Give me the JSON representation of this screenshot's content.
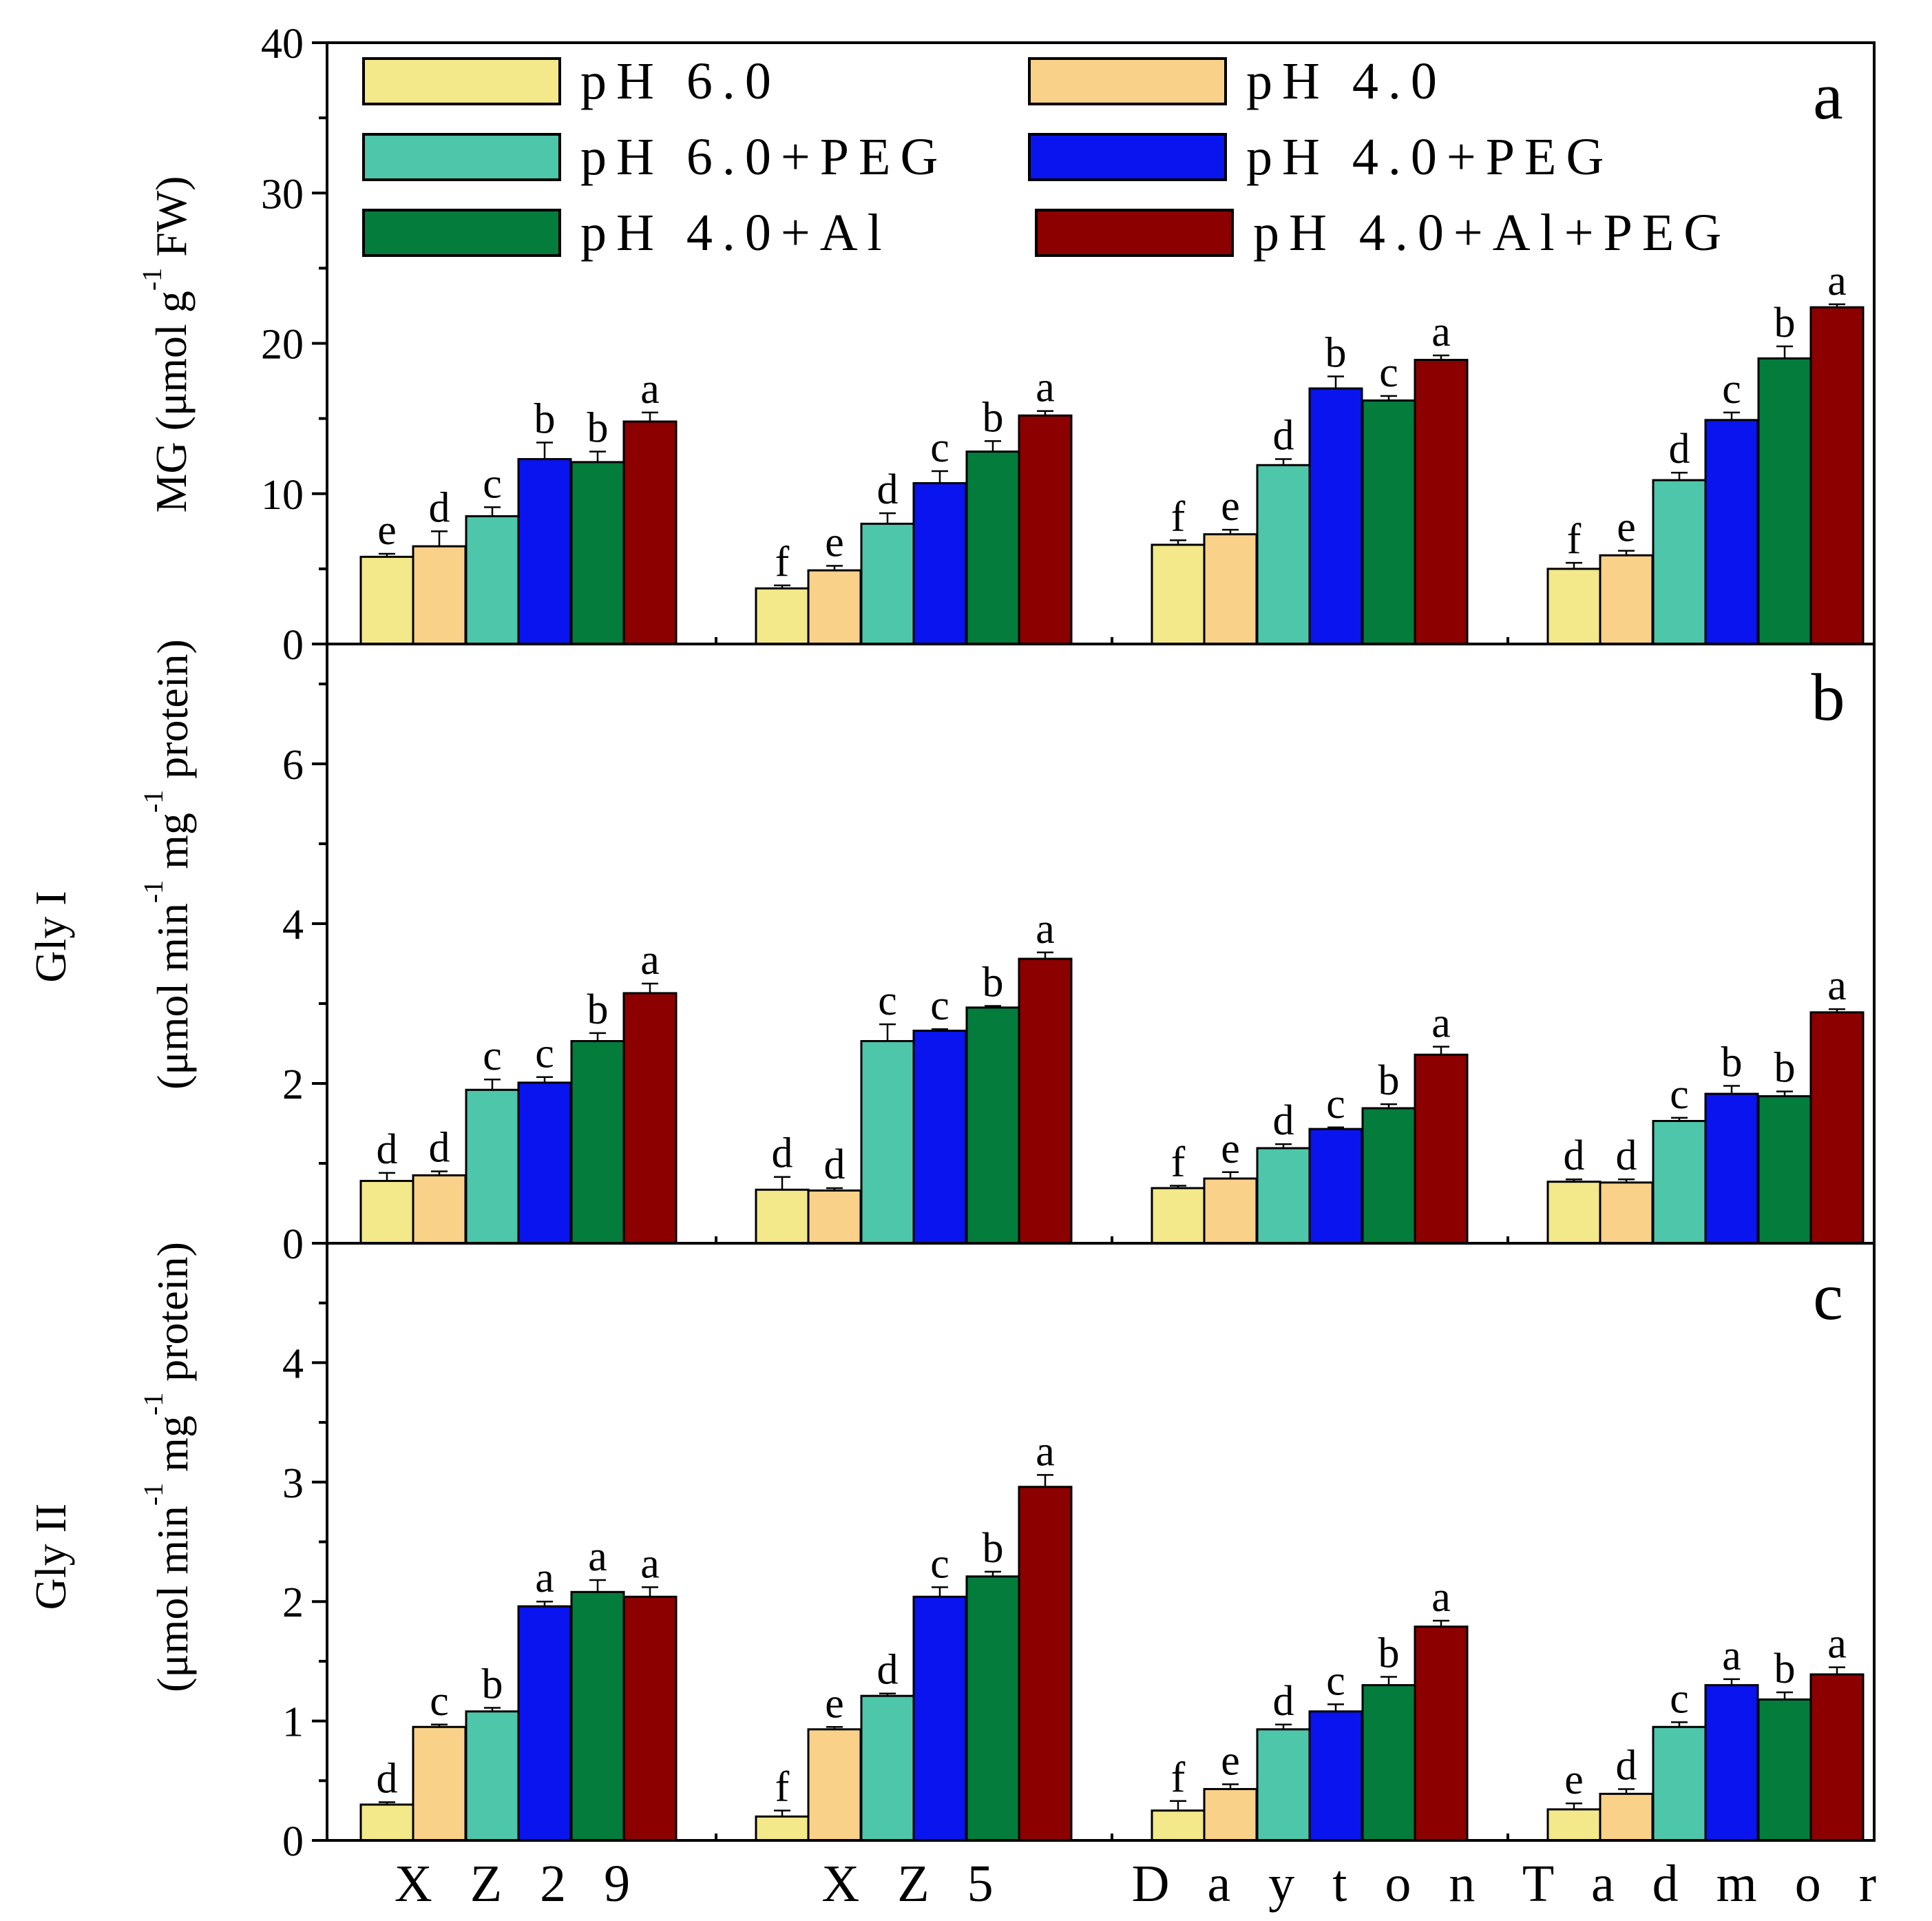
{
  "chart_data": {
    "type": "bar",
    "categories": [
      "XZ29",
      "XZ5",
      "Dayton",
      "Tadmor"
    ],
    "legend": [
      {
        "name": "pH 6.0",
        "color": "#f3e88a"
      },
      {
        "name": "pH 4.0",
        "color": "#f9d188"
      },
      {
        "name": "pH 6.0+PEG",
        "color": "#4ec6a9"
      },
      {
        "name": "pH 4.0+PEG",
        "color": "#0a14ee"
      },
      {
        "name": "pH 4.0+Al",
        "color": "#037c3c"
      },
      {
        "name": "pH 4.0+Al+PEG",
        "color": "#8c0000"
      }
    ],
    "panels": [
      {
        "panel_label": "a",
        "ylabel": "MG (μmol g",
        "ylabel_sup": "-1",
        "ylabel_end": " FW)",
        "ylim": [
          0,
          40
        ],
        "yticks": [
          "0",
          "10",
          "20",
          "30",
          "40"
        ],
        "series_values": [
          [
            5.8,
            3.7,
            6.6,
            5.0
          ],
          [
            6.5,
            4.9,
            7.3,
            5.9
          ],
          [
            8.5,
            8.0,
            11.9,
            10.9
          ],
          [
            12.3,
            10.7,
            17.0,
            14.9
          ],
          [
            12.1,
            12.8,
            16.2,
            19.0
          ],
          [
            14.8,
            15.2,
            18.9,
            22.4
          ]
        ],
        "errors": [
          [
            0.2,
            0.2,
            0.3,
            0.4
          ],
          [
            1.0,
            0.3,
            0.3,
            0.3
          ],
          [
            0.6,
            0.7,
            0.4,
            0.5
          ],
          [
            1.1,
            0.8,
            0.8,
            0.5
          ],
          [
            0.7,
            0.7,
            0.3,
            0.8
          ],
          [
            0.6,
            0.3,
            0.3,
            0.2
          ]
        ],
        "sig_letters": [
          [
            "e",
            "f",
            "f",
            "f"
          ],
          [
            "d",
            "e",
            "e",
            "e"
          ],
          [
            "c",
            "d",
            "d",
            "d"
          ],
          [
            "b",
            "c",
            "b",
            "c"
          ],
          [
            "b",
            "b",
            "c",
            "b"
          ],
          [
            "a",
            "a",
            "a",
            "a"
          ]
        ]
      },
      {
        "panel_label": "b",
        "ylabel_title": "Gly I",
        "ylabel": "(μmol min",
        "ylabel_sup": "-1",
        "ylabel_mid": " mg",
        "ylabel_sup2": "-1",
        "ylabel_end": " protein)",
        "ylim": [
          0,
          7.5
        ],
        "yticks": [
          "0",
          "2",
          "4",
          "6"
        ],
        "series_values": [
          [
            0.78,
            0.67,
            0.69,
            0.77
          ],
          [
            0.85,
            0.66,
            0.81,
            0.76
          ],
          [
            1.92,
            2.53,
            1.19,
            1.53
          ],
          [
            2.01,
            2.66,
            1.43,
            1.87
          ],
          [
            2.53,
            2.95,
            1.69,
            1.84
          ],
          [
            3.13,
            3.56,
            2.36,
            2.89
          ]
        ],
        "errors": [
          [
            0.1,
            0.16,
            0.03,
            0.03
          ],
          [
            0.05,
            0.03,
            0.08,
            0.04
          ],
          [
            0.13,
            0.21,
            0.05,
            0.04
          ],
          [
            0.07,
            0.02,
            0.02,
            0.1
          ],
          [
            0.1,
            0.02,
            0.05,
            0.06
          ],
          [
            0.12,
            0.08,
            0.1,
            0.04
          ]
        ],
        "sig_letters": [
          [
            "d",
            "d",
            "f",
            "d"
          ],
          [
            "d",
            "d",
            "e",
            "d"
          ],
          [
            "c",
            "c",
            "d",
            "c"
          ],
          [
            "c",
            "c",
            "c",
            "b"
          ],
          [
            "b",
            "b",
            "b",
            "b"
          ],
          [
            "a",
            "a",
            "a",
            "a"
          ]
        ]
      },
      {
        "panel_label": "c",
        "ylabel_title": "Gly II",
        "ylabel": "(μmol min",
        "ylabel_sup": "-1",
        "ylabel_mid": " mg",
        "ylabel_sup2": "-1",
        "ylabel_end": " protein)",
        "ylim": [
          0,
          5
        ],
        "yticks": [
          "0",
          "1",
          "2",
          "3",
          "4"
        ],
        "series_values": [
          [
            0.3,
            0.2,
            0.25,
            0.26
          ],
          [
            0.95,
            0.93,
            0.43,
            0.39
          ],
          [
            1.08,
            1.21,
            0.93,
            0.95
          ],
          [
            1.96,
            2.04,
            1.08,
            1.3
          ],
          [
            2.08,
            2.21,
            1.3,
            1.18
          ],
          [
            2.04,
            2.96,
            1.79,
            1.39
          ]
        ],
        "errors": [
          [
            0.02,
            0.05,
            0.08,
            0.05
          ],
          [
            0.02,
            0.02,
            0.04,
            0.04
          ],
          [
            0.03,
            0.02,
            0.04,
            0.04
          ],
          [
            0.04,
            0.08,
            0.06,
            0.05
          ],
          [
            0.1,
            0.04,
            0.07,
            0.06
          ],
          [
            0.08,
            0.1,
            0.05,
            0.06
          ]
        ],
        "sig_letters": [
          [
            "d",
            "f",
            "f",
            "e"
          ],
          [
            "c",
            "e",
            "e",
            "d"
          ],
          [
            "b",
            "d",
            "d",
            "c"
          ],
          [
            "a",
            "c",
            "c",
            "a"
          ],
          [
            "a",
            "b",
            "b",
            "b"
          ],
          [
            "a",
            "a",
            "a",
            "a"
          ]
        ]
      }
    ],
    "x_labels": [
      "X Z 2 9",
      "X Z 5",
      "D a y t o n",
      "T a d m o r"
    ]
  }
}
